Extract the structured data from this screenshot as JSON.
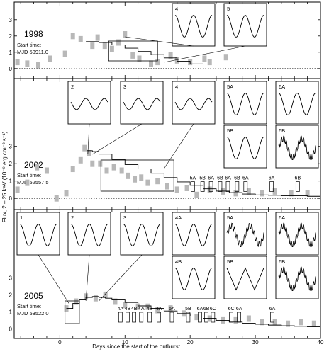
{
  "chart_data": {
    "type": "line",
    "xlabel": "Days since the start of the outburst",
    "ylabel": "Flux, 2 – 25 keV (10⁻⁹ erg cm⁻² s⁻¹)",
    "xlim": [
      -7,
      40
    ],
    "xticks": [
      0,
      10,
      20,
      30,
      40
    ],
    "panels": [
      {
        "year": "1998",
        "start_label": "Start time:",
        "start_mjd": "MJD 50911.0",
        "ylim": [
          -0.4,
          3.6
        ],
        "yticks": [
          0,
          1,
          2,
          3
        ],
        "asm_points": [
          {
            "x": -6.5,
            "y": 0.4
          },
          {
            "x": -5.0,
            "y": 0.3
          },
          {
            "x": -3.3,
            "y": 0.2
          },
          {
            "x": -1.5,
            "y": 0.6
          },
          {
            "x": 0.8,
            "y": 0.9
          },
          {
            "x": 2.0,
            "y": 2.0
          },
          {
            "x": 3.2,
            "y": 1.8
          },
          {
            "x": 5.0,
            "y": 1.4
          },
          {
            "x": 5.8,
            "y": 1.9
          },
          {
            "x": 6.9,
            "y": 1.4
          },
          {
            "x": 8.0,
            "y": 1.2
          },
          {
            "x": 9.0,
            "y": 1.6
          },
          {
            "x": 10.0,
            "y": 2.1
          },
          {
            "x": 11.2,
            "y": 0.8
          },
          {
            "x": 12.2,
            "y": 0.6
          },
          {
            "x": 14.0,
            "y": 0.3
          },
          {
            "x": 15.0,
            "y": 0.4
          },
          {
            "x": 17.0,
            "y": 0.8
          },
          {
            "x": 18.0,
            "y": 0.5
          },
          {
            "x": 20.0,
            "y": 0.4
          },
          {
            "x": 22.2,
            "y": 0.6
          },
          {
            "x": 23.0,
            "y": 0.4
          },
          {
            "x": 25.5,
            "y": 0.7
          }
        ],
        "pca_curve": [
          {
            "x": 4.0,
            "y": 1.65
          },
          {
            "x": 6.0,
            "y": 1.6
          },
          {
            "x": 8.0,
            "y": 1.45
          },
          {
            "x": 10.0,
            "y": 1.25
          },
          {
            "x": 12.0,
            "y": 1.05
          },
          {
            "x": 14.0,
            "y": 0.85
          },
          {
            "x": 16.0,
            "y": 0.65
          },
          {
            "x": 18.0,
            "y": 0.45
          },
          {
            "x": 20.0,
            "y": 0.28
          },
          {
            "x": 22.0,
            "y": 0.12
          }
        ],
        "insets": [
          "4",
          "5"
        ]
      },
      {
        "year": "2002",
        "start_label": "Start time:",
        "start_mjd": "MJD 52557.5",
        "ylim": [
          -0.4,
          3.6
        ],
        "yticks": [
          0,
          1,
          2,
          3
        ],
        "asm_points": [
          {
            "x": -6.5,
            "y": 0.5
          },
          {
            "x": -5.0,
            "y": 0.9
          },
          {
            "x": -3.5,
            "y": 1.8
          },
          {
            "x": -2.0,
            "y": 1.6
          },
          {
            "x": -0.5,
            "y": 0.0
          },
          {
            "x": 1.0,
            "y": 0.3
          },
          {
            "x": 2.0,
            "y": 1.7
          },
          {
            "x": 3.2,
            "y": 2.2
          },
          {
            "x": 3.8,
            "y": 2.9
          },
          {
            "x": 4.5,
            "y": 2.6
          },
          {
            "x": 5.0,
            "y": 2.0
          },
          {
            "x": 6.2,
            "y": 2.0
          },
          {
            "x": 7.2,
            "y": 1.6
          },
          {
            "x": 8.3,
            "y": 1.8
          },
          {
            "x": 9.5,
            "y": 1.6
          },
          {
            "x": 10.5,
            "y": 1.3
          },
          {
            "x": 11.5,
            "y": 1.1
          },
          {
            "x": 12.5,
            "y": 1.2
          },
          {
            "x": 13.5,
            "y": 0.9
          },
          {
            "x": 15.0,
            "y": 1.0
          },
          {
            "x": 16.5,
            "y": 0.7
          },
          {
            "x": 18.0,
            "y": 0.5
          },
          {
            "x": 19.5,
            "y": 0.6
          },
          {
            "x": 21.0,
            "y": 0.2
          },
          {
            "x": 23.0,
            "y": 0.5
          },
          {
            "x": 25.0,
            "y": 0.4
          },
          {
            "x": 27.0,
            "y": 0.3
          },
          {
            "x": 29.0,
            "y": 0.4
          },
          {
            "x": 31.0,
            "y": 0.3
          },
          {
            "x": 33.0,
            "y": 0.4
          },
          {
            "x": 35.5,
            "y": 0.3
          },
          {
            "x": 38.0,
            "y": 0.3
          }
        ],
        "pca_curve": [
          {
            "x": 4.2,
            "y": 2.75
          },
          {
            "x": 5.0,
            "y": 2.7
          },
          {
            "x": 6.0,
            "y": 2.55
          },
          {
            "x": 8.0,
            "y": 2.25
          },
          {
            "x": 10.0,
            "y": 1.95
          },
          {
            "x": 12.0,
            "y": 1.7
          },
          {
            "x": 14.0,
            "y": 1.45
          },
          {
            "x": 16.0,
            "y": 1.2
          },
          {
            "x": 18.0,
            "y": 0.95
          },
          {
            "x": 20.0,
            "y": 0.75
          },
          {
            "x": 22.0,
            "y": 0.55
          },
          {
            "x": 24.0,
            "y": 0.42
          },
          {
            "x": 26.0,
            "y": 0.33
          },
          {
            "x": 28.0,
            "y": 0.25
          },
          {
            "x": 30.0,
            "y": 0.2
          },
          {
            "x": 32.0,
            "y": 0.18
          },
          {
            "x": 34.0,
            "y": 0.15
          },
          {
            "x": 36.0,
            "y": 0.15
          },
          {
            "x": 38.0,
            "y": 0.12
          },
          {
            "x": 40.0,
            "y": 0.1
          }
        ],
        "annotations": [
          {
            "label": "5A",
            "x": 20.4
          },
          {
            "label": "5B",
            "x": 21.9
          },
          {
            "label": "6A",
            "x": 23.2
          },
          {
            "label": "6B",
            "x": 24.6
          },
          {
            "label": "6A",
            "x": 25.8
          },
          {
            "label": "6B",
            "x": 27.2
          },
          {
            "label": "6A",
            "x": 28.5
          },
          {
            "label": "6A",
            "x": 32.5
          },
          {
            "label": "6B",
            "x": 36.5
          }
        ],
        "insets": [
          "2",
          "3",
          "4",
          "5A",
          "5B",
          "6A",
          "6B"
        ]
      },
      {
        "year": "2005",
        "start_label": "Start time:",
        "start_mjd": "MJD 53522.0",
        "ylim": [
          -0.4,
          3.6
        ],
        "yticks": [
          0,
          1,
          2,
          3
        ],
        "asm_points": [
          {
            "x": 1.0,
            "y": 1.2
          },
          {
            "x": 2.5,
            "y": 1.6
          },
          {
            "x": 4.0,
            "y": 1.9
          },
          {
            "x": 5.5,
            "y": 1.8
          },
          {
            "x": 7.0,
            "y": 2.0
          },
          {
            "x": 8.5,
            "y": 1.6
          },
          {
            "x": 10.0,
            "y": 1.4
          },
          {
            "x": 12.0,
            "y": 1.3
          },
          {
            "x": 13.5,
            "y": 1.3
          },
          {
            "x": 15.0,
            "y": 1.1
          },
          {
            "x": 17.0,
            "y": 1.2
          },
          {
            "x": 19.0,
            "y": 0.9
          },
          {
            "x": 21.0,
            "y": 0.7
          },
          {
            "x": 23.0,
            "y": 0.6
          },
          {
            "x": 25.0,
            "y": 0.5
          },
          {
            "x": 27.0,
            "y": 0.5
          },
          {
            "x": 29.0,
            "y": 0.6
          },
          {
            "x": 31.0,
            "y": 0.4
          },
          {
            "x": 33.0,
            "y": 0.4
          },
          {
            "x": 35.0,
            "y": 0.3
          },
          {
            "x": 37.0,
            "y": 0.4
          },
          {
            "x": 39.0,
            "y": 0.3
          }
        ],
        "pca_curve": [
          {
            "x": 1.0,
            "y": 1.2
          },
          {
            "x": 2.0,
            "y": 1.5
          },
          {
            "x": 3.0,
            "y": 1.7
          },
          {
            "x": 4.0,
            "y": 1.85
          },
          {
            "x": 5.0,
            "y": 1.9
          },
          {
            "x": 6.0,
            "y": 1.85
          },
          {
            "x": 7.0,
            "y": 1.8
          },
          {
            "x": 8.0,
            "y": 1.7
          },
          {
            "x": 10.0,
            "y": 1.55
          },
          {
            "x": 12.0,
            "y": 1.35
          },
          {
            "x": 14.0,
            "y": 1.2
          },
          {
            "x": 16.0,
            "y": 1.05
          },
          {
            "x": 18.0,
            "y": 0.9
          },
          {
            "x": 20.0,
            "y": 0.75
          },
          {
            "x": 22.0,
            "y": 0.62
          },
          {
            "x": 24.0,
            "y": 0.5
          },
          {
            "x": 26.0,
            "y": 0.4
          },
          {
            "x": 28.0,
            "y": 0.33
          },
          {
            "x": 30.0,
            "y": 0.27
          },
          {
            "x": 32.0,
            "y": 0.22
          },
          {
            "x": 34.0,
            "y": 0.18
          },
          {
            "x": 36.0,
            "y": 0.15
          },
          {
            "x": 38.0,
            "y": 0.12
          },
          {
            "x": 40.0,
            "y": 0.1
          }
        ],
        "annotations": [
          {
            "label": "4A",
            "x": 9.3
          },
          {
            "label": "4B",
            "x": 10.4
          },
          {
            "label": "4B",
            "x": 11.4
          },
          {
            "label": "4A",
            "x": 12.5
          },
          {
            "label": "4B",
            "x": 13.8
          },
          {
            "label": "4A",
            "x": 15.2
          },
          {
            "label": "5A",
            "x": 17.2
          },
          {
            "label": "5B",
            "x": 19.7
          },
          {
            "label": "6A",
            "x": 21.5
          },
          {
            "label": "6B",
            "x": 22.5
          },
          {
            "label": "6C",
            "x": 23.5
          },
          {
            "label": "6C",
            "x": 26.3
          },
          {
            "label": "6A",
            "x": 27.5
          },
          {
            "label": "6A",
            "x": 32.6
          }
        ],
        "insets": [
          "1",
          "2",
          "3",
          "4A",
          "4B",
          "5A",
          "5B",
          "6A",
          "6B"
        ]
      }
    ]
  }
}
